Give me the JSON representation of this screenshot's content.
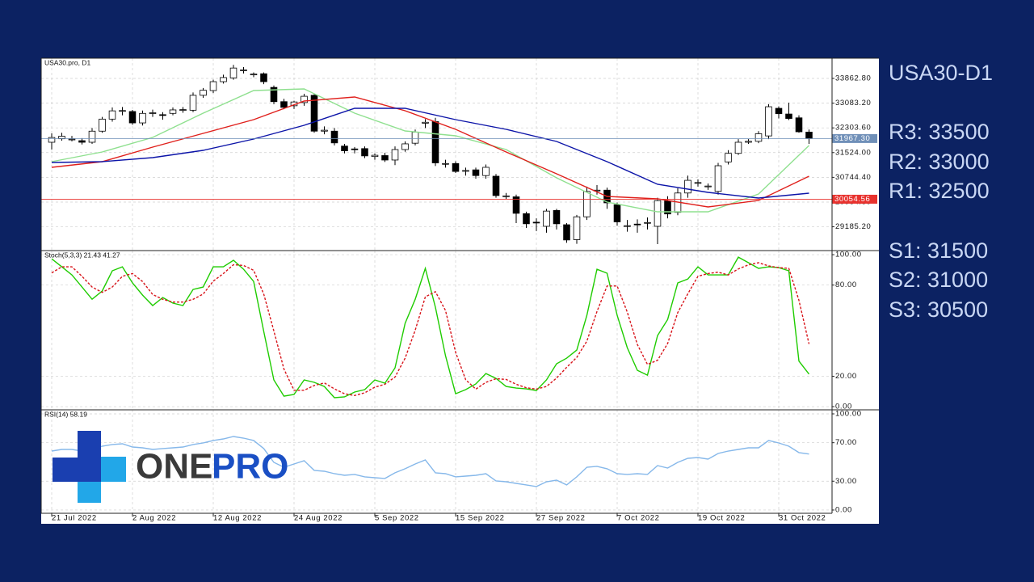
{
  "chart_data": [
    {
      "type": "candlestick",
      "title": "USA30.pro, D1",
      "x": [
        0,
        1,
        2,
        3,
        4,
        5,
        6,
        7,
        8,
        9,
        10,
        11,
        12,
        13,
        14,
        15,
        16,
        17,
        18,
        19,
        20,
        21,
        22,
        23,
        24,
        25,
        26,
        27,
        28,
        29,
        30,
        31,
        32,
        33,
        34,
        35,
        36,
        37,
        38,
        39,
        40,
        41,
        42,
        43,
        44,
        45,
        46,
        47,
        48,
        49,
        50,
        51,
        52,
        53,
        54,
        55,
        56,
        57,
        58,
        59,
        60,
        61,
        62,
        63,
        64,
        65,
        66,
        67,
        68,
        69,
        70,
        71,
        72,
        73,
        74,
        75
      ],
      "open": [
        31850,
        31960,
        31930,
        31900,
        31850,
        32200,
        32580,
        32830,
        32820,
        32460,
        32760,
        32720,
        32760,
        32860,
        32860,
        33330,
        33480,
        33760,
        33880,
        34110,
        33990,
        34010,
        33580,
        33130,
        33000,
        33100,
        33330,
        32200,
        32200,
        31730,
        31640,
        31650,
        31400,
        31430,
        31290,
        31620,
        31820,
        32450,
        32500,
        31160,
        31180,
        30940,
        30980,
        30800,
        30780,
        30150,
        30130,
        29600,
        29330,
        29200,
        29700,
        29250,
        28780,
        29500,
        30320,
        30340,
        29880,
        29210,
        29270,
        29310,
        29200,
        30000,
        29640,
        30250,
        30560,
        30450,
        30300,
        31230,
        31500,
        31850,
        31880,
        32050,
        32920,
        32740,
        32620,
        32170
      ],
      "high": [
        32130,
        32150,
        32050,
        31980,
        32300,
        32650,
        32950,
        32960,
        32870,
        32850,
        32880,
        32800,
        32950,
        32960,
        33420,
        33560,
        33820,
        33980,
        34290,
        34220,
        34050,
        34050,
        33640,
        33220,
        33160,
        33380,
        33380,
        32350,
        32300,
        31800,
        31700,
        31720,
        31500,
        31520,
        31720,
        31880,
        32250,
        32580,
        32620,
        31300,
        31250,
        31050,
        31050,
        31150,
        30850,
        30250,
        30200,
        29660,
        29450,
        29750,
        29750,
        29300,
        29560,
        30450,
        30500,
        30420,
        29950,
        29400,
        29420,
        29480,
        30100,
        30150,
        30400,
        30800,
        30680,
        30550,
        31200,
        31600,
        31950,
        31950,
        32200,
        33050,
        32980,
        33100,
        32700,
        32250
      ],
      "low": [
        31620,
        31900,
        31880,
        31780,
        31800,
        32150,
        32500,
        32700,
        32400,
        32380,
        32650,
        32560,
        32700,
        32780,
        32800,
        33250,
        33400,
        33700,
        33820,
        34020,
        33900,
        33680,
        33050,
        32890,
        32900,
        33000,
        32150,
        32100,
        31750,
        31500,
        31500,
        31350,
        31300,
        31230,
        31130,
        31550,
        31750,
        32300,
        31100,
        31050,
        30880,
        30800,
        30700,
        30700,
        30100,
        30050,
        29300,
        29150,
        29050,
        29000,
        29100,
        28680,
        28650,
        29400,
        30200,
        29750,
        29220,
        29030,
        29000,
        29100,
        28640,
        29450,
        29550,
        30100,
        30450,
        30350,
        30200,
        31150,
        31450,
        31800,
        31820,
        31950,
        32600,
        32550,
        32150,
        31800
      ],
      "close": [
        32000,
        32040,
        31950,
        31850,
        32200,
        32580,
        32840,
        32850,
        32460,
        32760,
        32780,
        32700,
        32870,
        32880,
        33330,
        33490,
        33760,
        33890,
        34190,
        34130,
        34000,
        33760,
        33130,
        32950,
        33120,
        33300,
        32200,
        32230,
        31830,
        31580,
        31620,
        31420,
        31440,
        31290,
        31620,
        31800,
        32170,
        32480,
        31200,
        31180,
        30930,
        30960,
        30800,
        31060,
        30170,
        30160,
        29610,
        29280,
        29310,
        29680,
        29280,
        28770,
        29500,
        30300,
        30340,
        29940,
        29340,
        29220,
        29260,
        29320,
        30010,
        29590,
        30250,
        30650,
        30580,
        30470,
        31110,
        31500,
        31850,
        31880,
        32120,
        32970,
        32750,
        32600,
        32180,
        31967.3
      ],
      "up_color": "#ffffff",
      "down_color": "#000000",
      "series": [
        {
          "color": "#8fe08f",
          "x": [
            0,
            5,
            10,
            15,
            20,
            25,
            30,
            35,
            40,
            45,
            50,
            55,
            60,
            65,
            70,
            75
          ],
          "values": [
            31238,
            31544,
            32003,
            32767,
            33481,
            33532,
            32767,
            32207,
            32054,
            31621,
            30729,
            29964,
            29659,
            29659,
            30219,
            31748
          ]
        },
        {
          "color": "#e0201c",
          "x": [
            0,
            5,
            10,
            15,
            20,
            25,
            30,
            35,
            40,
            45,
            50,
            55,
            60,
            65,
            70,
            75
          ],
          "values": [
            31060,
            31238,
            31697,
            32130,
            32563,
            33149,
            33277,
            32844,
            32258,
            31544,
            30856,
            30143,
            30066,
            29811,
            30015,
            30780
          ]
        },
        {
          "color": "#0c14a8",
          "x": [
            0,
            5,
            10,
            15,
            20,
            25,
            30,
            35,
            40,
            45,
            50,
            55,
            60,
            65,
            70,
            75
          ],
          "values": [
            31213,
            31238,
            31366,
            31595,
            31952,
            32385,
            32920,
            32920,
            32563,
            32258,
            31875,
            31238,
            30525,
            30270,
            30092,
            30244
          ]
        }
      ],
      "price_lines": [
        {
          "value": 31967.3,
          "label": "31967.30",
          "color": "#6f8fb8"
        },
        {
          "value": 30054.56,
          "label": "30054.56",
          "color": "#e8322e"
        }
      ],
      "xlim": [
        -1.04,
        77.28
      ],
      "ylim": [
        28435,
        34500
      ],
      "yticks": [
        {
          "value": 33862.8,
          "label": "33862.80"
        },
        {
          "value": 33083.2,
          "label": "33083.20"
        },
        {
          "value": 32303.6,
          "label": "32303.60"
        },
        {
          "value": 31524,
          "label": "31524.00"
        },
        {
          "value": 30744.4,
          "label": "30744.40"
        },
        {
          "value": 29964.8,
          "label": "29964.80"
        },
        {
          "value": 29185.2,
          "label": "29185.20"
        }
      ],
      "grid": true
    },
    {
      "type": "line",
      "title": "Stoch(5,3,3) 21.43 41.27",
      "x": [
        0,
        1,
        2,
        3,
        4,
        5,
        6,
        7,
        8,
        9,
        10,
        11,
        12,
        13,
        14,
        15,
        16,
        17,
        18,
        19,
        20,
        21,
        22,
        23,
        24,
        25,
        26,
        27,
        28,
        29,
        30,
        31,
        32,
        33,
        34,
        35,
        36,
        37,
        38,
        39,
        40,
        41,
        42,
        43,
        44,
        45,
        46,
        47,
        48,
        49,
        50,
        51,
        52,
        53,
        54,
        55,
        56,
        57,
        58,
        59,
        60,
        61,
        62,
        63,
        64,
        65,
        66,
        67,
        68,
        69,
        70,
        71,
        72,
        73,
        74,
        75
      ],
      "series": [
        {
          "color": "#1fcc00",
          "values": [
            97.3,
            92,
            86.7,
            78.7,
            70.7,
            76.1,
            89.4,
            92,
            81.4,
            73.4,
            66.5,
            71.8,
            68.1,
            66.5,
            77.1,
            78.7,
            92,
            92,
            96.3,
            90.4,
            82.4,
            49.5,
            17.6,
            6.9,
            8,
            17.6,
            16,
            13.3,
            5.9,
            6.4,
            9.6,
            11.2,
            17.6,
            15.4,
            25.5,
            54.8,
            70.7,
            91,
            65.4,
            33.5,
            8.5,
            11.2,
            14.9,
            21.8,
            18.6,
            13.3,
            12.2,
            11.7,
            10.6,
            17.6,
            28.2,
            31.9,
            37.2,
            60.1,
            90.4,
            87.8,
            60.1,
            38.8,
            23.9,
            20.7,
            46.8,
            57.4,
            81.4,
            84,
            92,
            86.7,
            86.7,
            86.7,
            98.4,
            94.7,
            91,
            92,
            91.5,
            89.4,
            30,
            21.43
          ]
        },
        {
          "color": "#d8141a",
          "style": "dashed",
          "values": [
            88,
            92,
            92,
            85.8,
            78.7,
            75.2,
            78.7,
            85.8,
            87.6,
            82.3,
            73.8,
            70.6,
            68.8,
            68.8,
            70.6,
            74.1,
            82.6,
            87.6,
            93.4,
            92.9,
            89.7,
            74.1,
            49.8,
            24.7,
            10.8,
            10.8,
            13.9,
            15.6,
            11.7,
            8.5,
            7.3,
            9.1,
            12.8,
            14.7,
            19.5,
            31.9,
            50.3,
            72.2,
            75.7,
            63.3,
            35.8,
            17.7,
            11.5,
            16,
            18.4,
            17.9,
            14.7,
            12.4,
            11.5,
            13.3,
            18.8,
            25.9,
            32.4,
            43.1,
            62.6,
            79.4,
            79.4,
            62.2,
            40.9,
            27.8,
            30.5,
            41.6,
            61.9,
            74.3,
            85.8,
            87.6,
            88.5,
            86.7,
            90.6,
            93.3,
            94.7,
            92.6,
            91.5,
            91,
            70,
            41.27
          ]
        }
      ],
      "xlim": [
        -1.04,
        77.28
      ],
      "ylim": [
        -2.1,
        102.7
      ],
      "yticks": [
        {
          "value": 100,
          "label": "100.00"
        },
        {
          "value": 80,
          "label": "80.00"
        },
        {
          "value": 20,
          "label": "20.00"
        },
        {
          "value": 0,
          "label": "0.00"
        }
      ],
      "grid": true
    },
    {
      "type": "line",
      "title": "RSI(14) 58.19",
      "x": [
        0,
        1,
        2,
        3,
        4,
        5,
        6,
        7,
        8,
        9,
        10,
        11,
        12,
        13,
        14,
        15,
        16,
        17,
        18,
        19,
        20,
        21,
        22,
        23,
        24,
        25,
        26,
        27,
        28,
        29,
        30,
        31,
        32,
        33,
        34,
        35,
        36,
        37,
        38,
        39,
        40,
        41,
        42,
        43,
        44,
        45,
        46,
        47,
        48,
        49,
        50,
        51,
        52,
        53,
        54,
        55,
        56,
        57,
        58,
        59,
        60,
        61,
        62,
        63,
        64,
        65,
        66,
        67,
        68,
        69,
        70,
        71,
        72,
        73,
        74,
        75
      ],
      "series": [
        {
          "color": "#86b8ea",
          "values": [
            61.3,
            63,
            63,
            61.3,
            63.9,
            66.4,
            68.1,
            68.9,
            65.5,
            64.7,
            63,
            63.9,
            64.7,
            65.5,
            68.1,
            69.7,
            72.3,
            73.9,
            76.5,
            74.8,
            72.3,
            63.9,
            49.6,
            44.5,
            47.9,
            51.3,
            41.2,
            40.3,
            37.8,
            36.1,
            37,
            34.5,
            33.6,
            32.8,
            38.7,
            42.9,
            47.9,
            52.1,
            38.7,
            37.8,
            34.5,
            35.3,
            36.1,
            37.8,
            30.3,
            29.4,
            27.7,
            26.1,
            24.4,
            29.4,
            31.1,
            26.1,
            34.5,
            44.5,
            45.4,
            42.9,
            37.8,
            37,
            37.8,
            37,
            46.2,
            43.7,
            49.6,
            53.8,
            54.6,
            52.9,
            58.8,
            61.3,
            63,
            64.7,
            64.7,
            72.3,
            69.7,
            66.4,
            59.7,
            58.19
          ]
        }
      ],
      "xlim": [
        -1.04,
        77.28
      ],
      "ylim": [
        -3.4,
        104.2
      ],
      "yticks": [
        {
          "value": 100,
          "label": "100.00"
        },
        {
          "value": 70,
          "label": "70.00"
        },
        {
          "value": 30,
          "label": "30.00"
        },
        {
          "value": 0,
          "label": "0.00"
        }
      ],
      "xticks": [
        {
          "value": 0,
          "label": "21 Jul 2022"
        },
        {
          "value": 8,
          "label": "2 Aug 2022"
        },
        {
          "value": 16,
          "label": "12 Aug 2022"
        },
        {
          "value": 24,
          "label": "24 Aug 2022"
        },
        {
          "value": 32,
          "label": "5 Sep 2022"
        },
        {
          "value": 40,
          "label": "15 Sep 2022"
        },
        {
          "value": 48,
          "label": "27 Sep 2022"
        },
        {
          "value": 56,
          "label": "7 Oct 2022"
        },
        {
          "value": 64,
          "label": "19 Oct 2022"
        },
        {
          "value": 72,
          "label": "31 Oct 2022"
        }
      ],
      "grid": true
    }
  ],
  "logo": [
    "ONE",
    "PRO"
  ],
  "side_panel": {
    "title": "USA30-D1",
    "levels": [
      "R3: 33500",
      "R2: 33000",
      "R1: 32500",
      "S1: 31500",
      "S2: 31000",
      "S3: 30500"
    ]
  }
}
